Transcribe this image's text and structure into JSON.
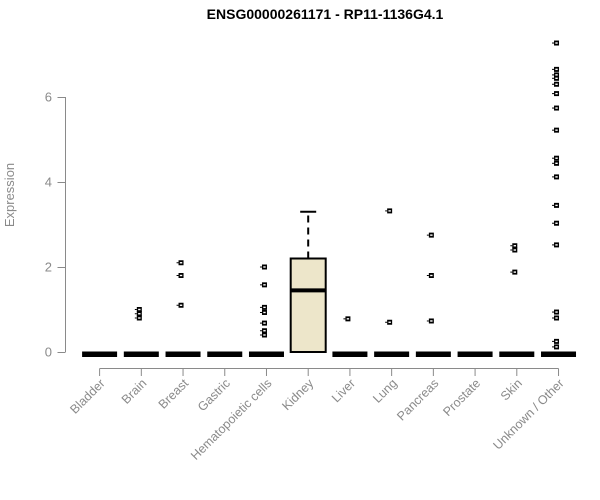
{
  "colors": {
    "background": "#ffffff",
    "title": "#000000",
    "axis": "#8a8a8a",
    "box_fill": "#ede6ca",
    "box_stroke": "#000000",
    "point": "#000000"
  },
  "chart_data": {
    "type": "boxplot",
    "title": "ENSG00000261171 - RP11-1136G4.1",
    "xlabel": "",
    "ylabel": "Expression",
    "yticks": [
      0,
      2,
      4,
      6
    ],
    "ylim": [
      0,
      7.5
    ],
    "grid": false,
    "legend": false,
    "categories": [
      "Bladder",
      "Brain",
      "Breast",
      "Gastric",
      "Hematopoietic cells",
      "Kidney",
      "Liver",
      "Lung",
      "Pancreas",
      "Prostate",
      "Skin",
      "Unknown / Other"
    ],
    "boxes": [
      {
        "whisker_low": 0,
        "q1": 0,
        "median": 0,
        "q3": 0,
        "whisker_high": 0
      },
      {
        "whisker_low": 0,
        "q1": 0,
        "median": 0,
        "q3": 0,
        "whisker_high": 0
      },
      {
        "whisker_low": 0,
        "q1": 0,
        "median": 0,
        "q3": 0,
        "whisker_high": 0
      },
      {
        "whisker_low": 0,
        "q1": 0,
        "median": 0,
        "q3": 0,
        "whisker_high": 0
      },
      {
        "whisker_low": 0,
        "q1": 0,
        "median": 0,
        "q3": 0,
        "whisker_high": 0
      },
      {
        "whisker_low": 0,
        "q1": 0,
        "median": 1.45,
        "q3": 2.2,
        "whisker_high": 3.3
      },
      {
        "whisker_low": 0,
        "q1": 0,
        "median": 0,
        "q3": 0,
        "whisker_high": 0
      },
      {
        "whisker_low": 0,
        "q1": 0,
        "median": 0,
        "q3": 0,
        "whisker_high": 0
      },
      {
        "whisker_low": 0,
        "q1": 0,
        "median": 0,
        "q3": 0,
        "whisker_high": 0
      },
      {
        "whisker_low": 0,
        "q1": 0,
        "median": 0,
        "q3": 0,
        "whisker_high": 0
      },
      {
        "whisker_low": 0,
        "q1": 0,
        "median": 0,
        "q3": 0,
        "whisker_high": 0
      },
      {
        "whisker_low": 0,
        "q1": 0,
        "median": 0,
        "q3": 0,
        "whisker_high": 0
      }
    ],
    "outliers": [
      [],
      [
        1.0,
        0.9,
        0.8
      ],
      [
        2.1,
        1.8,
        1.1
      ],
      [],
      [
        2.0,
        1.58,
        1.05,
        0.93,
        0.68,
        0.5,
        0.4
      ],
      [],
      [
        0.78
      ],
      [
        3.32,
        0.7
      ],
      [
        2.75,
        1.8,
        0.73
      ],
      [],
      [
        2.5,
        2.4,
        1.88
      ],
      [
        7.27,
        6.65,
        6.52,
        6.44,
        6.3,
        6.08,
        5.74,
        5.22,
        4.56,
        4.44,
        4.12,
        3.45,
        3.03,
        2.52,
        0.94,
        0.8,
        0.25,
        0.12
      ]
    ]
  }
}
